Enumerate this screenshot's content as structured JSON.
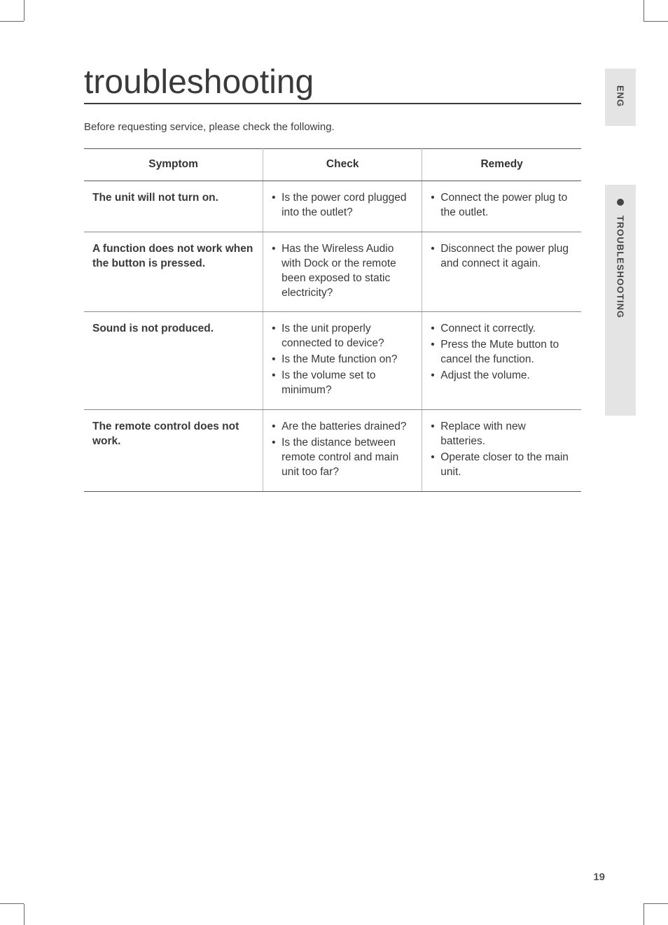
{
  "page": {
    "title": "troubleshooting",
    "intro": "Before requesting service, please check the following.",
    "page_number": "19"
  },
  "side_tabs": {
    "lang": "ENG",
    "section": "TROUBLESHOOTING"
  },
  "table": {
    "headers": {
      "symptom": "Symptom",
      "check": "Check",
      "remedy": "Remedy"
    },
    "column_widths_pct": [
      36,
      32,
      32
    ],
    "rows": [
      {
        "symptom": "The unit will not turn on.",
        "check": [
          "Is the power cord plugged into the outlet?"
        ],
        "remedy": [
          "Connect the power plug to the outlet."
        ]
      },
      {
        "symptom": "A function does not work when the button is pressed.",
        "check": [
          "Has the Wireless Audio with Dock or the remote been exposed to static electricity?"
        ],
        "remedy": [
          "Disconnect the power plug and connect it again."
        ]
      },
      {
        "symptom": "Sound is not produced.",
        "check": [
          "Is the unit properly connected to device?",
          "Is the Mute function on?",
          "Is the volume set to minimum?"
        ],
        "remedy": [
          "Connect it correctly.",
          "Press the Mute button to cancel the function.",
          "Adjust the volume."
        ]
      },
      {
        "symptom": "The remote control does not work.",
        "check": [
          "Are the batteries drained?",
          "Is the distance between remote control and main unit too far?"
        ],
        "remedy": [
          "Replace with new batteries.",
          "Operate closer to the main unit."
        ]
      }
    ]
  },
  "colors": {
    "text": "#3a3a3a",
    "border_strong": "#555555",
    "border_light": "#bbbbbb",
    "tab_bg": "#e4e4e4",
    "page_bg": "#ffffff"
  },
  "typography": {
    "title_fontsize_pt": 36,
    "body_fontsize_pt": 11.5,
    "header_weight": 600
  }
}
